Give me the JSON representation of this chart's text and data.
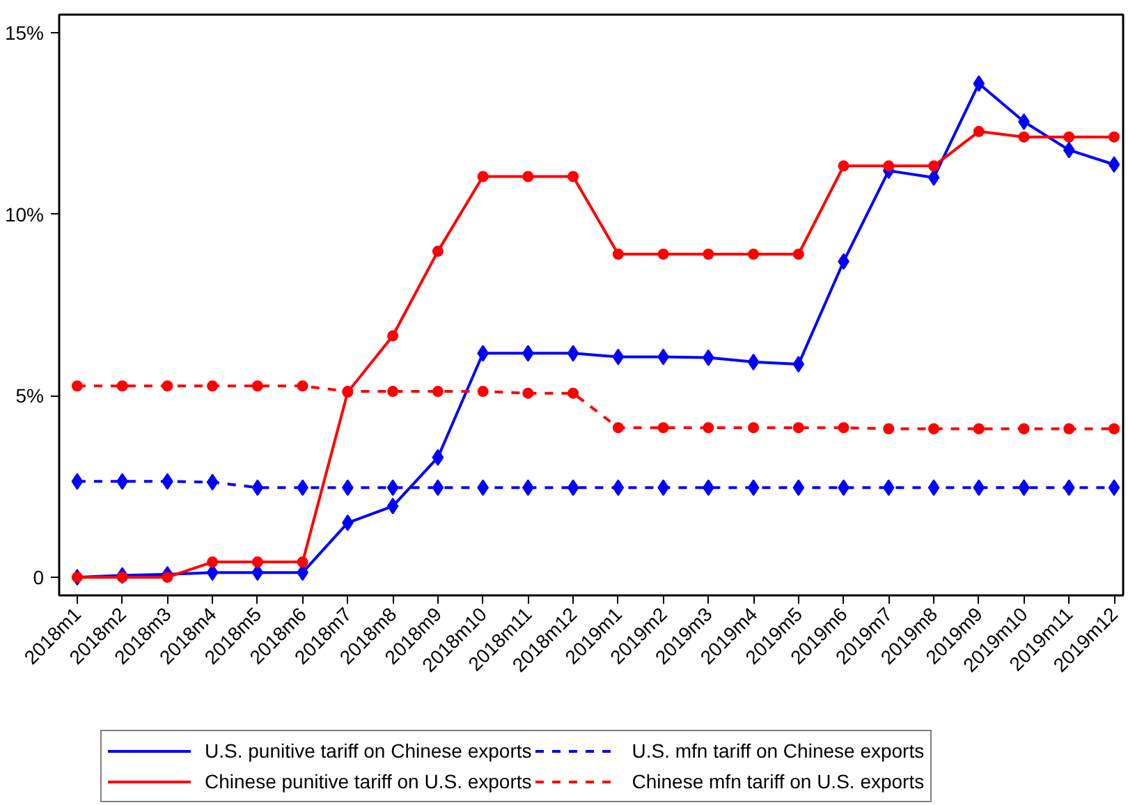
{
  "chart_data": {
    "type": "line",
    "categories": [
      "2018m1",
      "2018m2",
      "2018m3",
      "2018m4",
      "2018m5",
      "2018m6",
      "2018m7",
      "2018m8",
      "2018m9",
      "2018m10",
      "2018m11",
      "2018m12",
      "2019m1",
      "2019m2",
      "2019m3",
      "2019m4",
      "2019m5",
      "2019m6",
      "2019m7",
      "2019m8",
      "2019m9",
      "2019m10",
      "2019m11",
      "2019m12"
    ],
    "series": [
      {
        "name": "U.S. punitive tariff on Chinese exports",
        "color": "#0000ff",
        "marker": "diamond",
        "line_style": "solid",
        "values": [
          0,
          0.05,
          0.08,
          0.13,
          0.13,
          0.13,
          1.5,
          1.96,
          3.3,
          6.17,
          6.17,
          6.17,
          6.07,
          6.07,
          6.05,
          5.93,
          5.87,
          8.7,
          11.2,
          11.01,
          13.6,
          12.55,
          11.77,
          11.37
        ]
      },
      {
        "name": "U.S. mfn tariff on Chinese exports",
        "color": "#0000ff",
        "marker": "diamond",
        "line_style": "dashed",
        "values": [
          2.64,
          2.64,
          2.64,
          2.62,
          2.47,
          2.47,
          2.47,
          2.47,
          2.47,
          2.47,
          2.47,
          2.47,
          2.47,
          2.47,
          2.47,
          2.47,
          2.47,
          2.47,
          2.47,
          2.47,
          2.47,
          2.47,
          2.47,
          2.47
        ]
      },
      {
        "name": "Chinese punitive tariff on U.S. exports",
        "color": "#ff0000",
        "marker": "circle",
        "line_style": "solid",
        "values": [
          0,
          0,
          0,
          0.42,
          0.42,
          0.42,
          5.1,
          6.65,
          8.98,
          11.04,
          11.04,
          11.04,
          8.9,
          8.9,
          8.9,
          8.9,
          8.9,
          11.33,
          11.33,
          11.33,
          12.28,
          12.13,
          12.13,
          12.13
        ]
      },
      {
        "name": "Chinese mfn tariff on U.S. exports",
        "color": "#ff0000",
        "marker": "circle",
        "line_style": "dashed",
        "values": [
          5.27,
          5.27,
          5.27,
          5.27,
          5.27,
          5.27,
          5.12,
          5.12,
          5.12,
          5.12,
          5.07,
          5.07,
          4.12,
          4.12,
          4.12,
          4.12,
          4.12,
          4.12,
          4.09,
          4.09,
          4.09,
          4.09,
          4.09,
          4.09
        ]
      }
    ],
    "ylim": [
      -0.5,
      15.5
    ],
    "yticks": [
      {
        "value": 0,
        "label": "0"
      },
      {
        "value": 5,
        "label": "5%"
      },
      {
        "value": 10,
        "label": "10%"
      },
      {
        "value": 15,
        "label": "15%"
      }
    ],
    "grid": false,
    "legend": "bottom"
  }
}
